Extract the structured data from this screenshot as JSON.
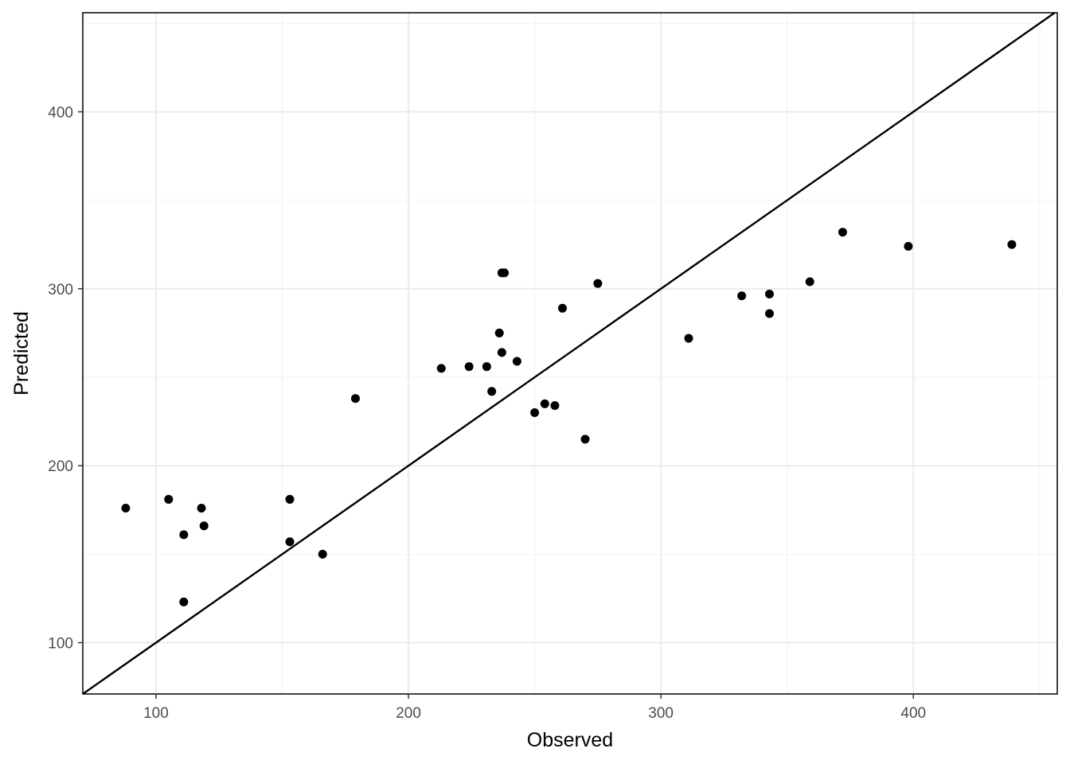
{
  "chart_data": {
    "type": "scatter",
    "title": "",
    "xlabel": "Observed",
    "ylabel": "Predicted",
    "xlim": [
      71,
      457
    ],
    "ylim": [
      71,
      456
    ],
    "x_ticks": [
      100,
      200,
      300,
      400
    ],
    "y_ticks": [
      100,
      200,
      300,
      400
    ],
    "grid": true,
    "reference_line": {
      "slope": 1,
      "intercept": 0
    },
    "points": [
      {
        "x": 88,
        "y": 176
      },
      {
        "x": 105,
        "y": 181
      },
      {
        "x": 111,
        "y": 161
      },
      {
        "x": 111,
        "y": 123
      },
      {
        "x": 118,
        "y": 176
      },
      {
        "x": 119,
        "y": 166
      },
      {
        "x": 153,
        "y": 181
      },
      {
        "x": 153,
        "y": 157
      },
      {
        "x": 166,
        "y": 150
      },
      {
        "x": 179,
        "y": 238
      },
      {
        "x": 213,
        "y": 255
      },
      {
        "x": 224,
        "y": 256
      },
      {
        "x": 231,
        "y": 256
      },
      {
        "x": 233,
        "y": 242
      },
      {
        "x": 236,
        "y": 275
      },
      {
        "x": 237,
        "y": 264
      },
      {
        "x": 237,
        "y": 309
      },
      {
        "x": 238,
        "y": 309
      },
      {
        "x": 243,
        "y": 259
      },
      {
        "x": 250,
        "y": 230
      },
      {
        "x": 254,
        "y": 235
      },
      {
        "x": 258,
        "y": 234
      },
      {
        "x": 261,
        "y": 289
      },
      {
        "x": 270,
        "y": 215
      },
      {
        "x": 275,
        "y": 303
      },
      {
        "x": 311,
        "y": 272
      },
      {
        "x": 332,
        "y": 296
      },
      {
        "x": 343,
        "y": 297
      },
      {
        "x": 343,
        "y": 286
      },
      {
        "x": 359,
        "y": 304
      },
      {
        "x": 372,
        "y": 332
      },
      {
        "x": 398,
        "y": 324
      },
      {
        "x": 439,
        "y": 325
      }
    ]
  }
}
